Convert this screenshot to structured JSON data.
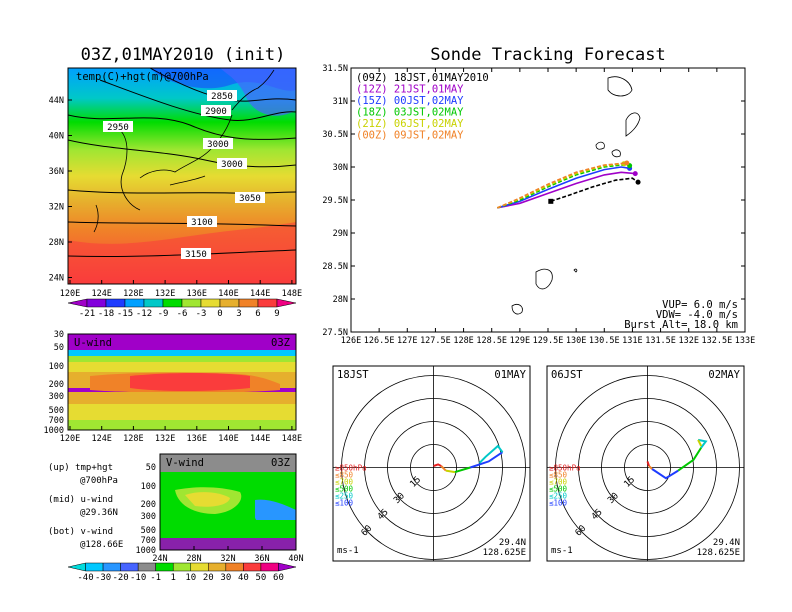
{
  "left_title": "03Z,01MAY2010 (init)",
  "right_title": "Sonde Tracking Forecast",
  "map_panel": {
    "label": "temp(C)+hgt(m)@700hPa",
    "lat_ticks": [
      "44N",
      "40N",
      "36N",
      "32N",
      "28N",
      "24N"
    ],
    "lon_ticks": [
      "120E",
      "124E",
      "128E",
      "132E",
      "136E",
      "140E",
      "144E",
      "148E"
    ],
    "contour_labels": [
      "2850",
      "2900",
      "2950",
      "3000",
      "3000",
      "3050",
      "3100",
      "3150"
    ]
  },
  "temp_colorbar": {
    "labels": [
      "-21",
      "-18",
      "-15",
      "-12",
      "-9",
      "-6",
      "-3",
      "0",
      "3",
      "6",
      "9"
    ],
    "colors": [
      "#a000c8",
      "#8200dc",
      "#1e3cff",
      "#00a0ff",
      "#00c8c8",
      "#00dc00",
      "#a0e632",
      "#e6dc32",
      "#e6af2d",
      "#f08228",
      "#fa3c3c",
      "#f00082"
    ]
  },
  "uwind_panel": {
    "label": "U-wind",
    "time": "03Z",
    "y_ticks": [
      "30",
      "50",
      "100",
      "200",
      "300",
      "500",
      "700",
      "1000"
    ],
    "x_ticks": [
      "120E",
      "124E",
      "128E",
      "132E",
      "136E",
      "140E",
      "144E",
      "148E"
    ]
  },
  "vwind_panel": {
    "label": "V-wind",
    "time": "03Z",
    "y_ticks": [
      "50",
      "100",
      "200",
      "300",
      "500",
      "700",
      "1000"
    ],
    "x_ticks": [
      "24N",
      "28N",
      "32N",
      "36N",
      "40N"
    ]
  },
  "side_notes": [
    {
      "head": "(up) tmp+hgt",
      "sub": "@700hPa"
    },
    {
      "head": "(mid) u-wind",
      "sub": "@29.36N"
    },
    {
      "head": "(bot) v-wind",
      "sub": "@128.66E"
    }
  ],
  "wind_colorbar": {
    "labels": [
      "-40",
      "-30",
      "-20",
      "-10",
      "-1",
      "1",
      "10",
      "20",
      "30",
      "40",
      "50",
      "60"
    ],
    "colors": [
      "#00dcdc",
      "#00c8ff",
      "#2896ff",
      "#4664ff",
      "#8c8c8c",
      "#00dc00",
      "#a0e632",
      "#e6dc32",
      "#e6af2d",
      "#f08228",
      "#fa3c3c",
      "#f00082",
      "#a000c8"
    ]
  },
  "chart_data": {
    "type": "line",
    "title": "Sonde Tracking Forecast",
    "x_ticks": [
      "126E",
      "126.5E",
      "127E",
      "127.5E",
      "128E",
      "128.5E",
      "129E",
      "129.5E",
      "130E",
      "130.5E",
      "131E",
      "131.5E",
      "132E",
      "132.5E",
      "133E"
    ],
    "y_ticks": [
      "31.5N",
      "31N",
      "30.5N",
      "30N",
      "29.5N",
      "29N",
      "28.5N",
      "28N",
      "27.5N"
    ],
    "xlim": [
      126,
      133
    ],
    "ylim": [
      27.5,
      31.5
    ],
    "series": [
      {
        "name": "(09Z) 18JST,01MAY2010",
        "color": "#000000",
        "dashed": false,
        "points": [
          [
            129.55,
            29.48
          ],
          [
            129.9,
            29.58
          ],
          [
            130.3,
            29.7
          ],
          [
            130.7,
            29.8
          ],
          [
            131.0,
            29.83
          ],
          [
            131.1,
            29.77
          ]
        ]
      },
      {
        "name": "(12Z) 21JST,01MAY",
        "color": "#a000c8",
        "dashed": false,
        "points": [
          [
            128.6,
            29.38
          ],
          [
            129.0,
            29.45
          ],
          [
            129.5,
            29.6
          ],
          [
            130.0,
            29.75
          ],
          [
            130.5,
            29.88
          ],
          [
            130.8,
            29.92
          ],
          [
            131.05,
            29.9
          ]
        ]
      },
      {
        "name": "(15Z) 00JST,02MAY",
        "color": "#1e3cff",
        "dashed": false,
        "points": [
          [
            128.6,
            29.38
          ],
          [
            129.0,
            29.48
          ],
          [
            129.5,
            29.66
          ],
          [
            130.0,
            29.83
          ],
          [
            130.5,
            29.96
          ],
          [
            130.8,
            30.0
          ],
          [
            130.95,
            29.98
          ]
        ]
      },
      {
        "name": "(18Z) 03JST,02MAY",
        "color": "#00c800",
        "dashed": false,
        "points": [
          [
            128.6,
            29.38
          ],
          [
            129.0,
            29.5
          ],
          [
            129.5,
            29.7
          ],
          [
            130.0,
            29.88
          ],
          [
            130.5,
            30.0
          ],
          [
            130.8,
            30.03
          ],
          [
            130.95,
            30.02
          ]
        ]
      },
      {
        "name": "(21Z) 06JST,02MAY",
        "color": "#c8d200",
        "dashed": false,
        "points": [
          [
            128.6,
            29.38
          ],
          [
            129.0,
            29.52
          ],
          [
            129.5,
            29.72
          ],
          [
            130.0,
            29.9
          ],
          [
            130.5,
            30.02
          ],
          [
            130.85,
            30.05
          ]
        ]
      },
      {
        "name": "(00Z) 09JST,02MAY",
        "color": "#f08228",
        "dashed": false,
        "points": [
          [
            128.6,
            29.38
          ],
          [
            129.0,
            29.53
          ],
          [
            129.5,
            29.74
          ],
          [
            130.0,
            29.92
          ],
          [
            130.5,
            30.03
          ],
          [
            130.9,
            30.06
          ]
        ]
      }
    ],
    "annotations": {
      "vup": "VUP=  6.0 m/s",
      "vdw": "VDW= -4.0 m/s",
      "burst": "Burst Alt= 18.0 km"
    }
  },
  "hodographs": [
    {
      "time": "18JST",
      "date": "01MAY",
      "lat": "29.4N",
      "lon": "128.625E",
      "unit": "ms-1",
      "ring_labels": [
        "15",
        "30",
        "45",
        "60"
      ],
      "levels": [
        {
          "label": "≥850hPa",
          "color": "#e61e1e"
        },
        {
          "label": "≤850",
          "color": "#f08228"
        },
        {
          "label": "≤700",
          "color": "#c8d200"
        },
        {
          "label": "≤500",
          "color": "#00c800"
        },
        {
          "label": "≤250",
          "color": "#00c8c8"
        },
        {
          "label": "≤100",
          "color": "#1e3cff"
        }
      ],
      "segments": [
        {
          "color": "#e61e1e",
          "pts": [
            [
              0,
              1
            ],
            [
              3,
              2
            ],
            [
              5,
              1
            ]
          ]
        },
        {
          "color": "#f08228",
          "pts": [
            [
              5,
              1
            ],
            [
              8,
              -2
            ]
          ]
        },
        {
          "color": "#c8d200",
          "pts": [
            [
              8,
              -2
            ],
            [
              14,
              -3
            ]
          ]
        },
        {
          "color": "#00c800",
          "pts": [
            [
              14,
              -3
            ],
            [
              24,
              0
            ]
          ]
        },
        {
          "color": "#1e3cff",
          "pts": [
            [
              24,
              0
            ],
            [
              36,
              4
            ],
            [
              45,
              10
            ]
          ]
        },
        {
          "color": "#00c8c8",
          "pts": [
            [
              45,
              10
            ],
            [
              42,
              14
            ],
            [
              34,
              7
            ],
            [
              30,
              3
            ]
          ]
        }
      ]
    },
    {
      "time": "06JST",
      "date": "02MAY",
      "lat": "29.4N",
      "lon": "128.625E",
      "unit": "ms-1",
      "ring_labels": [
        "15",
        "30",
        "45",
        "60"
      ],
      "levels": [
        {
          "label": "≥850hPa",
          "color": "#e61e1e"
        },
        {
          "label": "≤850",
          "color": "#f08228"
        },
        {
          "label": "≤700",
          "color": "#c8d200"
        },
        {
          "label": "≤500",
          "color": "#00c800"
        },
        {
          "label": "≤250",
          "color": "#00c8c8"
        },
        {
          "label": "≤100",
          "color": "#1e3cff"
        }
      ],
      "segments": [
        {
          "color": "#e61e1e",
          "pts": [
            [
              0,
              4
            ],
            [
              1,
              1
            ]
          ]
        },
        {
          "color": "#f08228",
          "pts": [
            [
              1,
              1
            ],
            [
              3,
              -1
            ]
          ]
        },
        {
          "color": "#1e3cff",
          "pts": [
            [
              3,
              -1
            ],
            [
              12,
              -7
            ],
            [
              20,
              -2
            ]
          ]
        },
        {
          "color": "#00c800",
          "pts": [
            [
              20,
              -2
            ],
            [
              30,
              5
            ],
            [
              35,
              13
            ]
          ]
        },
        {
          "color": "#00c8c8",
          "pts": [
            [
              35,
              13
            ],
            [
              38,
              17
            ],
            [
              33,
              18
            ]
          ]
        },
        {
          "color": "#c8d200",
          "pts": [
            [
              33,
              18
            ],
            [
              35,
              14
            ]
          ]
        }
      ]
    }
  ]
}
